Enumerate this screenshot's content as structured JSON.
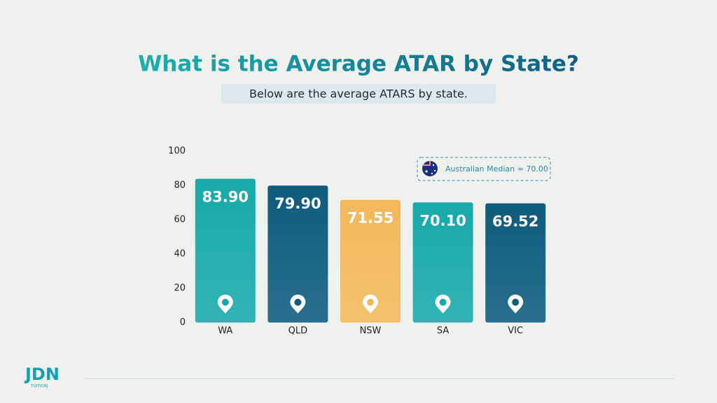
{
  "chart_data": {
    "type": "bar",
    "title": "What is the Average ATAR by State?",
    "subtitle": "Below are the average ATARS by state.",
    "categories": [
      "WA",
      "QLD",
      "NSW",
      "SA",
      "VIC"
    ],
    "values": [
      83.9,
      79.9,
      71.55,
      70.1,
      69.52
    ],
    "value_labels": [
      "83.90",
      "79.90",
      "71.55",
      "70.10",
      "69.52"
    ],
    "colors": [
      "#17a9ab",
      "#0d5b7e",
      "#f2b85a",
      "#17a9ab",
      "#0d5b7e"
    ],
    "ylim": [
      0,
      100
    ],
    "yticks": [
      0,
      20,
      40,
      60,
      80,
      100
    ],
    "grid": false,
    "annotation": "Australian Median ≈ 70.00"
  },
  "logo": {
    "name": "JDN",
    "tagline": "TUITION"
  }
}
